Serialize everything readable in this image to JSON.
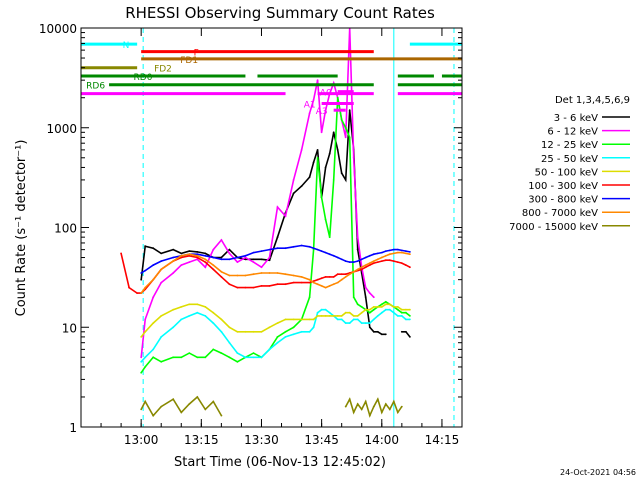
{
  "chart_data": {
    "type": "line",
    "title": "RHESSI Observing Summary Count Rates",
    "xlabel": "Start Time (06-Nov-13 12:45:02)",
    "ylabel": "Count Rate (s⁻¹ detector⁻¹)",
    "ylog": true,
    "ylim": [
      1,
      10000
    ],
    "xlim_minutes": [
      -15,
      80
    ],
    "x_ticks": [
      {
        "m": 0,
        "label": "13:00"
      },
      {
        "m": 15,
        "label": "13:15"
      },
      {
        "m": 30,
        "label": "13:30"
      },
      {
        "m": 45,
        "label": "13:45"
      },
      {
        "m": 60,
        "label": "14:00"
      },
      {
        "m": 75,
        "label": "14:15"
      }
    ],
    "y_ticks": [
      {
        "v": 1,
        "label": "1"
      },
      {
        "v": 10,
        "label": "10"
      },
      {
        "v": 100,
        "label": "100"
      },
      {
        "v": 1000,
        "label": "1000"
      },
      {
        "v": 10000,
        "label": "10000"
      }
    ],
    "legend": {
      "title": "Det 1,3,4,5,6,9",
      "placement": "right"
    },
    "series": [
      {
        "name": "3 - 6 keV",
        "color": "#000000",
        "x": [
          -5,
          -3,
          -1,
          0,
          1,
          3,
          5,
          8,
          10,
          12,
          14,
          16,
          18,
          20,
          22,
          24,
          26,
          28,
          30,
          32,
          34,
          36,
          38,
          40,
          42,
          43,
          44,
          45,
          46,
          47,
          48,
          49,
          50,
          51,
          52,
          53,
          54,
          55,
          56,
          57,
          58,
          59,
          60,
          61,
          62,
          63,
          64,
          65,
          66,
          67
        ],
        "y": [
          null,
          null,
          null,
          30,
          65,
          62,
          55,
          60,
          55,
          58,
          57,
          55,
          50,
          50,
          60,
          50,
          48,
          48,
          48,
          47,
          80,
          140,
          220,
          260,
          320,
          450,
          600,
          200,
          400,
          550,
          900,
          600,
          350,
          300,
          1500,
          600,
          60,
          35,
          20,
          10,
          9,
          9,
          8.5,
          8.5,
          null,
          null,
          null,
          9,
          9,
          8
        ]
      },
      {
        "name": "6 - 12 keV",
        "color": "#ff00ff",
        "x": [
          -5,
          -3,
          -1,
          0,
          1,
          3,
          5,
          8,
          10,
          12,
          14,
          16,
          18,
          20,
          22,
          24,
          26,
          28,
          30,
          32,
          34,
          36,
          38,
          40,
          42,
          43,
          44,
          45,
          46,
          47,
          48,
          49,
          50,
          51,
          52,
          53,
          54,
          55,
          56,
          57,
          58,
          59,
          60,
          61,
          62,
          63,
          64,
          65,
          66,
          67
        ],
        "y": [
          null,
          null,
          null,
          5,
          12,
          20,
          28,
          35,
          42,
          45,
          48,
          40,
          60,
          75,
          55,
          45,
          50,
          45,
          40,
          50,
          160,
          130,
          300,
          600,
          1400,
          1900,
          3000,
          900,
          1500,
          2200,
          2800,
          2000,
          1200,
          800,
          10000,
          500,
          80,
          40,
          25,
          22,
          20,
          null,
          null,
          null,
          null,
          null,
          null,
          null,
          null,
          null
        ]
      },
      {
        "name": "12 - 25 keV",
        "color": "#00ff00",
        "x": [
          -5,
          -3,
          -1,
          0,
          1,
          3,
          5,
          8,
          10,
          12,
          14,
          16,
          18,
          20,
          22,
          24,
          26,
          28,
          30,
          32,
          34,
          36,
          38,
          40,
          42,
          43,
          44,
          45,
          46,
          47,
          48,
          49,
          50,
          51,
          52,
          53,
          54,
          55,
          56,
          57,
          58,
          59,
          60,
          61,
          62,
          63,
          64,
          65,
          66,
          67
        ],
        "y": [
          null,
          null,
          null,
          3.5,
          4,
          5,
          4.5,
          5,
          5,
          5.5,
          5,
          5,
          6,
          5.5,
          5,
          4.5,
          5,
          5.5,
          5,
          6,
          8,
          9,
          10,
          12,
          20,
          60,
          500,
          200,
          120,
          80,
          300,
          2000,
          1200,
          1000,
          800,
          20,
          17,
          16,
          15,
          14,
          15,
          16,
          17,
          18,
          17,
          16,
          15,
          14,
          14,
          13
        ]
      },
      {
        "name": "25 - 50 keV",
        "color": "#00ffff",
        "x": [
          -5,
          -3,
          -1,
          0,
          1,
          3,
          5,
          8,
          10,
          12,
          14,
          16,
          18,
          20,
          22,
          24,
          26,
          28,
          30,
          32,
          34,
          36,
          38,
          40,
          42,
          43,
          44,
          45,
          46,
          47,
          48,
          49,
          50,
          51,
          52,
          53,
          54,
          55,
          56,
          57,
          58,
          59,
          60,
          61,
          62,
          63,
          64,
          65,
          66,
          67
        ],
        "y": [
          null,
          null,
          null,
          4.5,
          5,
          6,
          8,
          10,
          12,
          13,
          14,
          13,
          11,
          9,
          7,
          5.5,
          5,
          5,
          5,
          6,
          7,
          8,
          8.5,
          9,
          9,
          10,
          14,
          15,
          15,
          14,
          13,
          12,
          12,
          11,
          11,
          12,
          12,
          11,
          11,
          11,
          12,
          13,
          14,
          15,
          15,
          14,
          13,
          13,
          12,
          12
        ]
      },
      {
        "name": "50 - 100 keV",
        "color": "#dddd00",
        "x": [
          -5,
          -3,
          -1,
          0,
          1,
          3,
          5,
          8,
          10,
          12,
          14,
          16,
          18,
          20,
          22,
          24,
          26,
          28,
          30,
          32,
          34,
          36,
          38,
          40,
          42,
          43,
          44,
          45,
          46,
          47,
          48,
          49,
          50,
          51,
          52,
          53,
          54,
          55,
          56,
          57,
          58,
          59,
          60,
          61,
          62,
          63,
          64,
          65,
          66,
          67
        ],
        "y": [
          null,
          null,
          null,
          8,
          9,
          11,
          13,
          15,
          16,
          17,
          17,
          16,
          14,
          12,
          10,
          9,
          9,
          9,
          9,
          10,
          11,
          12,
          12,
          12,
          12,
          12,
          13,
          13,
          13,
          13,
          13,
          13,
          13,
          14,
          14,
          13,
          13,
          14,
          15,
          15,
          16,
          16,
          16,
          17,
          17,
          16,
          16,
          15,
          15,
          15
        ]
      },
      {
        "name": "100 - 300 keV",
        "color": "#ff0000",
        "x": [
          -5,
          -3,
          -1,
          0,
          1,
          3,
          5,
          8,
          10,
          12,
          14,
          16,
          18,
          20,
          22,
          24,
          26,
          28,
          30,
          32,
          34,
          36,
          38,
          40,
          42,
          43,
          44,
          45,
          46,
          47,
          48,
          49,
          50,
          51,
          52,
          53,
          54,
          55,
          56,
          57,
          58,
          59,
          60,
          61,
          62,
          63,
          64,
          65,
          66,
          67
        ],
        "y": [
          55,
          25,
          22,
          22,
          24,
          30,
          38,
          46,
          50,
          52,
          50,
          45,
          38,
          32,
          27,
          25,
          25,
          25,
          26,
          26,
          27,
          27,
          28,
          28,
          28,
          29,
          30,
          31,
          32,
          32,
          32,
          34,
          34,
          34,
          35,
          36,
          37,
          38,
          40,
          42,
          44,
          45,
          46,
          47,
          47,
          46,
          45,
          44,
          42,
          40
        ]
      },
      {
        "name": "300 - 800 keV",
        "color": "#0000ff",
        "x": [
          -5,
          -3,
          -1,
          0,
          1,
          3,
          5,
          8,
          10,
          12,
          14,
          16,
          18,
          20,
          22,
          24,
          26,
          28,
          30,
          32,
          34,
          36,
          38,
          40,
          42,
          43,
          44,
          45,
          46,
          47,
          48,
          49,
          50,
          51,
          52,
          53,
          54,
          55,
          56,
          57,
          58,
          59,
          60,
          61,
          62,
          63,
          64,
          65,
          66,
          67
        ],
        "y": [
          null,
          null,
          null,
          35,
          37,
          42,
          46,
          50,
          52,
          54,
          54,
          52,
          50,
          48,
          48,
          50,
          52,
          56,
          58,
          60,
          62,
          62,
          64,
          66,
          64,
          62,
          60,
          58,
          56,
          54,
          52,
          50,
          48,
          46,
          45,
          45,
          46,
          48,
          50,
          52,
          54,
          55,
          56,
          58,
          59,
          60,
          60,
          59,
          58,
          57
        ]
      },
      {
        "name": "800 - 7000 keV",
        "color": "#ff8800",
        "x": [
          -5,
          -3,
          -1,
          0,
          1,
          3,
          5,
          8,
          10,
          12,
          14,
          16,
          18,
          20,
          22,
          24,
          26,
          28,
          30,
          32,
          34,
          36,
          38,
          40,
          42,
          43,
          44,
          45,
          46,
          47,
          48,
          49,
          50,
          51,
          52,
          53,
          54,
          55,
          56,
          57,
          58,
          59,
          60,
          61,
          62,
          63,
          64,
          65,
          66,
          67
        ],
        "y": [
          null,
          null,
          null,
          22,
          25,
          30,
          38,
          46,
          52,
          54,
          52,
          48,
          42,
          36,
          33,
          33,
          33,
          34,
          35,
          35,
          35,
          34,
          33,
          32,
          30,
          28,
          27,
          26,
          25,
          26,
          27,
          28,
          30,
          32,
          34,
          36,
          38,
          40,
          42,
          44,
          46,
          48,
          50,
          52,
          54,
          55,
          56,
          56,
          55,
          54
        ]
      },
      {
        "name": "7000 - 15000 keV",
        "color": "#888800",
        "x": [
          -5,
          -3,
          -1,
          0,
          1,
          3,
          5,
          8,
          10,
          12,
          14,
          16,
          18,
          20,
          22,
          24,
          26,
          28,
          30,
          32,
          34,
          36,
          38,
          40,
          42,
          43,
          44,
          45,
          46,
          47,
          48,
          49,
          50,
          51,
          52,
          53,
          54,
          55,
          56,
          57,
          58,
          59,
          60,
          61,
          62,
          63,
          64,
          65,
          66,
          67
        ],
        "y": [
          null,
          null,
          null,
          1.5,
          1.8,
          1.3,
          1.6,
          1.9,
          1.4,
          1.7,
          2.0,
          1.5,
          1.8,
          1.3,
          null,
          null,
          null,
          null,
          null,
          null,
          null,
          null,
          null,
          null,
          null,
          null,
          null,
          null,
          null,
          null,
          null,
          null,
          null,
          1.6,
          1.9,
          1.4,
          1.7,
          1.5,
          1.8,
          1.3,
          1.6,
          1.9,
          1.4,
          1.7,
          1.5,
          1.8,
          1.4,
          1.6,
          null,
          null
        ]
      }
    ],
    "flag_bars": [
      {
        "label": "N",
        "color": "#00ffff",
        "y": 6900,
        "segments": [
          [
            -15,
            -1
          ],
          [
            67,
            80
          ]
        ]
      },
      {
        "label": "F",
        "color": "#ff0000",
        "y": 5800,
        "segments": [
          [
            0,
            58
          ]
        ]
      },
      {
        "label": "FD1",
        "color": "#aa6600",
        "y": 4900,
        "segments": [
          [
            0,
            80
          ]
        ]
      },
      {
        "label": "FD2",
        "color": "#888800",
        "y": 4000,
        "segments": [
          [
            -15,
            -1
          ]
        ]
      },
      {
        "label": "RD0",
        "color": "#008800",
        "y": 3300,
        "segments": [
          [
            -15,
            26
          ],
          [
            29,
            49
          ],
          [
            64,
            73
          ],
          [
            75,
            80
          ]
        ]
      },
      {
        "label": "RD6",
        "color": "#008800",
        "y": 2700,
        "segments": [
          [
            -8,
            58
          ],
          [
            64,
            80
          ]
        ]
      },
      {
        "label": "",
        "color": "#ff00ff",
        "y": 2200,
        "segments": [
          [
            -15,
            36
          ],
          [
            44,
            58
          ],
          [
            64,
            80
          ]
        ]
      },
      {
        "label": "A1",
        "color": "#ff00ff",
        "y": 1750,
        "segments": [
          [
            45,
            53
          ]
        ]
      },
      {
        "label": "A3",
        "color": "#ff00ff",
        "y": 1500,
        "segments": [
          [
            48,
            51
          ]
        ]
      },
      {
        "label": "A0",
        "color": "#ff00ff",
        "y": 2300,
        "segments": [
          [
            49,
            53
          ]
        ]
      }
    ],
    "vertical_lines": [
      {
        "m": -15,
        "color": "#00ffff",
        "style": "solid"
      },
      {
        "m": 0.5,
        "color": "#00ffff",
        "style": "dashed"
      },
      {
        "m": 63,
        "color": "#00ffff",
        "style": "solid"
      },
      {
        "m": 78,
        "color": "#00ffff",
        "style": "dashed"
      }
    ],
    "timestamp": "24-Oct-2021 04:56"
  }
}
